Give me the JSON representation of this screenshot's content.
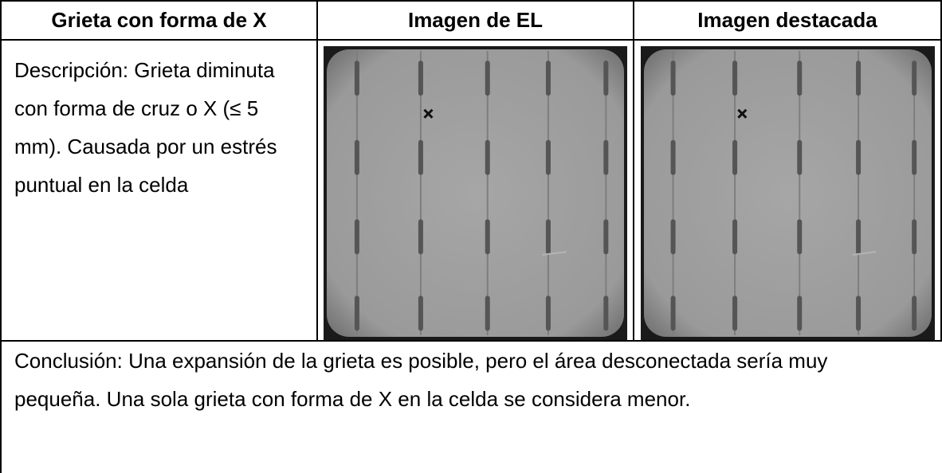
{
  "table": {
    "headers": [
      "Grieta con forma de X",
      "Imagen de EL",
      "Imagen destacada"
    ],
    "description": "Descripción: Grieta diminuta con forma de cruz o X (≤ 5 mm). Causada por un estrés puntual en la celda",
    "conclusion": "Conclusión: Una expansión de la grieta es posible, pero el área desconectada sería muy pequeña. Una sola grieta con forma de X en la celda se considera menor."
  }
}
